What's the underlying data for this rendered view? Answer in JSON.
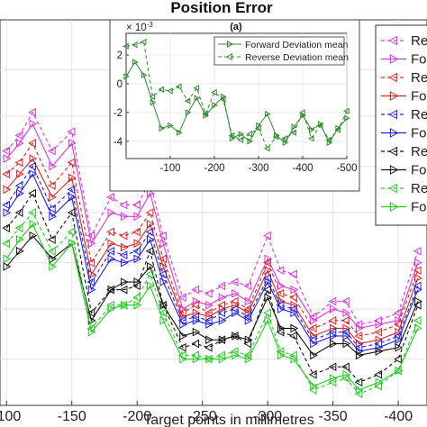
{
  "title": "Position Error",
  "chart_data": [
    {
      "type": "line",
      "title": "Position Error",
      "xlabel": "Target points in millimetres",
      "xlim": [
        -95,
        -422
      ],
      "ylim": [
        0,
        100
      ],
      "x": [
        -100,
        -110,
        -120,
        -135,
        -150,
        -165,
        -180,
        -190,
        -200,
        -210,
        -220,
        -235,
        -245,
        -255,
        -265,
        -275,
        -285,
        -300,
        -310,
        -320,
        -335,
        -350,
        -360,
        -370,
        -385,
        -400,
        -415
      ],
      "xticks": [
        -100,
        -150,
        -200,
        -250,
        -300,
        -350,
        -400
      ],
      "xtick_labels": [
        "-100",
        "-150",
        "-200",
        "-250",
        "-300",
        "-350",
        "-400"
      ],
      "grid": true,
      "legend_position": "top-right",
      "legend_entries": [
        "Re",
        "Fo",
        "Re",
        "Fo",
        "Re",
        "Fo",
        "Re",
        "Fo",
        "Re",
        "Fo"
      ],
      "series": [
        {
          "name": "Re",
          "color": "#dd33dd",
          "dash": true,
          "marker": "left",
          "values": [
            66,
            70,
            76,
            66,
            71,
            44,
            54,
            52,
            52,
            58,
            44,
            28,
            30,
            29,
            31,
            32,
            31,
            44,
            35,
            34,
            23,
            27,
            27,
            21,
            22,
            24,
            40
          ]
        },
        {
          "name": "Fo",
          "color": "#dd33dd",
          "dash": false,
          "marker": "right",
          "values": [
            64,
            68,
            73,
            62,
            68,
            42,
            50,
            49,
            49,
            55,
            42,
            25,
            27,
            26,
            28,
            29,
            27,
            38,
            31,
            30,
            22,
            25,
            24,
            20,
            21,
            22,
            37
          ]
        },
        {
          "name": "Re",
          "color": "#dd2222",
          "dash": true,
          "marker": "left",
          "values": [
            60,
            63,
            68,
            57,
            63,
            37,
            45,
            44,
            45,
            50,
            38,
            24,
            26,
            24,
            26,
            27,
            25,
            37,
            29,
            28,
            20,
            22,
            22,
            18,
            19,
            21,
            35
          ]
        },
        {
          "name": "Fo",
          "color": "#dd2222",
          "dash": false,
          "marker": "right",
          "values": [
            56,
            60,
            64,
            54,
            59,
            34,
            42,
            41,
            42,
            47,
            36,
            23,
            24,
            23,
            25,
            26,
            24,
            35,
            27,
            26,
            18,
            20,
            20,
            16,
            17,
            19,
            33
          ]
        },
        {
          "name": "Re",
          "color": "#2222dd",
          "dash": true,
          "marker": "left",
          "values": [
            52,
            57,
            62,
            51,
            56,
            32,
            40,
            39,
            40,
            45,
            34,
            22,
            23,
            22,
            24,
            25,
            23,
            33,
            26,
            25,
            17,
            19,
            19,
            15,
            16,
            18,
            31
          ]
        },
        {
          "name": "Fo",
          "color": "#2222dd",
          "dash": false,
          "marker": "right",
          "values": [
            50,
            55,
            60,
            49,
            54,
            30,
            38,
            37,
            38,
            43,
            32,
            21,
            22,
            21,
            22,
            24,
            22,
            32,
            25,
            24,
            16,
            18,
            18,
            14,
            15,
            17,
            30
          ]
        },
        {
          "name": "Re",
          "color": "#111111",
          "dash": true,
          "marker": "left",
          "values": [
            46,
            50,
            55,
            43,
            50,
            24,
            30,
            30,
            31,
            40,
            26,
            15,
            16,
            15,
            17,
            18,
            16,
            30,
            19,
            18,
            8,
            10,
            10,
            6,
            8,
            12,
            26
          ]
        },
        {
          "name": "Fo",
          "color": "#111111",
          "dash": false,
          "marker": "right",
          "values": [
            36,
            40,
            44,
            38,
            42,
            22,
            30,
            32,
            32,
            36,
            26,
            18,
            19,
            17,
            17,
            18,
            17,
            28,
            20,
            20,
            13,
            16,
            16,
            13,
            14,
            15,
            27
          ]
        },
        {
          "name": "Re",
          "color": "#22cc22",
          "dash": true,
          "marker": "left",
          "values": [
            42,
            46,
            50,
            40,
            45,
            20,
            26,
            26,
            28,
            34,
            24,
            13,
            13,
            12,
            13,
            14,
            13,
            24,
            14,
            13,
            4,
            6,
            7,
            3,
            5,
            9,
            22
          ]
        },
        {
          "name": "Fo",
          "color": "#22cc22",
          "dash": false,
          "marker": "right",
          "values": [
            38,
            43,
            47,
            36,
            42,
            19,
            25,
            26,
            26,
            31,
            22,
            12,
            12,
            12,
            12,
            13,
            12,
            22,
            13,
            12,
            5,
            7,
            8,
            4,
            6,
            9,
            20
          ]
        }
      ]
    },
    {
      "type": "line",
      "title": "(a)",
      "xlim": [
        0,
        -500
      ],
      "ylim": [
        -5.2,
        3.5
      ],
      "y_exponent": "× 10",
      "y_exponent_power": "-3",
      "xticks": [
        -100,
        -200,
        -300,
        -400,
        -500
      ],
      "xtick_labels": [
        "-100",
        "-200",
        "-300",
        "-400",
        "-500"
      ],
      "yticks": [
        2,
        0,
        -2,
        -4
      ],
      "ytick_labels": [
        "2",
        "0",
        "-2",
        "-4"
      ],
      "grid": true,
      "legend_position": "top-right",
      "x": [
        0,
        -20,
        -40,
        -60,
        -80,
        -100,
        -120,
        -140,
        -160,
        -180,
        -200,
        -220,
        -240,
        -260,
        -280,
        -300,
        -320,
        -340,
        -360,
        -380,
        -400,
        -420,
        -440,
        -460,
        -480,
        -500
      ],
      "series": [
        {
          "name": "Forward Deviation mean",
          "color": "#2e8b2e",
          "dash": false,
          "marker": "right",
          "values": [
            0.5,
            1.5,
            0.6,
            -1.3,
            -3.1,
            -2.9,
            -3.4,
            -2.0,
            -1.0,
            -2.2,
            -1.5,
            -0.9,
            -3.8,
            -3.5,
            -4.0,
            -2.9,
            -2.1,
            -3.6,
            -4.1,
            -3.0,
            -2.2,
            -3.2,
            -2.8,
            -4.1,
            -3.1,
            -2.4
          ]
        },
        {
          "name": "Reverse Deviation mean",
          "color": "#2e8b2e",
          "dash": true,
          "marker": "left",
          "values": [
            2.6,
            2.7,
            2.9,
            -0.9,
            -0.4,
            -0.5,
            -0.2,
            -1.2,
            -0.3,
            -2.1,
            -0.6,
            -1.1,
            -3.6,
            -3.9,
            -3.5,
            -3.1,
            -4.5,
            -3.7,
            -3.8,
            -3.4,
            -2.0,
            -3.8,
            -2.9,
            -3.9,
            -3.2,
            -1.9
          ]
        }
      ]
    }
  ]
}
